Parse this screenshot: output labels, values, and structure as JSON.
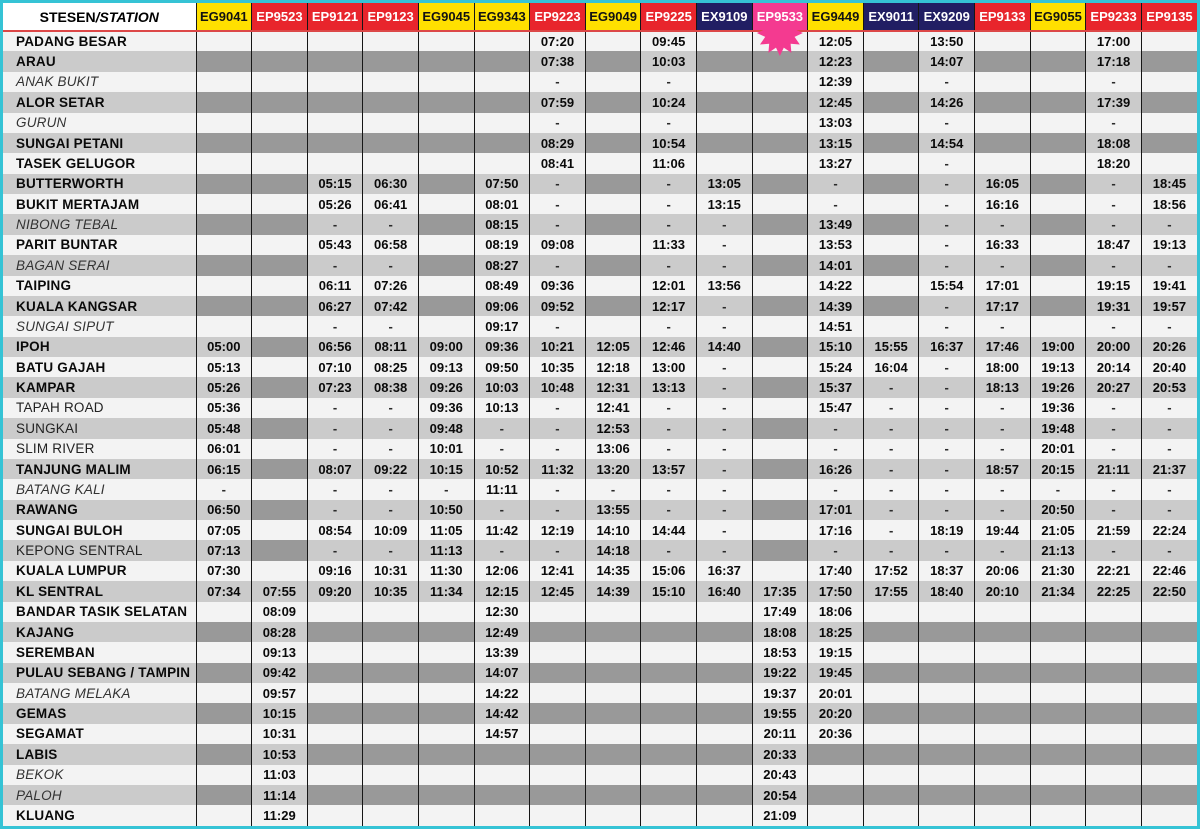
{
  "header": {
    "station_col_bold": "STESEN",
    "station_col_italic": "/STATION",
    "trains": [
      {
        "id": "EG9041",
        "color": "yellow"
      },
      {
        "id": "EP9523",
        "color": "red"
      },
      {
        "id": "EP9121",
        "color": "red"
      },
      {
        "id": "EP9123",
        "color": "red"
      },
      {
        "id": "EG9045",
        "color": "yellow"
      },
      {
        "id": "EG9343",
        "color": "yellow"
      },
      {
        "id": "EP9223",
        "color": "red"
      },
      {
        "id": "EG9049",
        "color": "yellow"
      },
      {
        "id": "EP9225",
        "color": "red"
      },
      {
        "id": "EX9109",
        "color": "navy"
      },
      {
        "id": "EP9533",
        "color": "pink",
        "marker": true,
        "marker_icon": "starburst"
      },
      {
        "id": "EG9449",
        "color": "yellow"
      },
      {
        "id": "EX9011",
        "color": "navy"
      },
      {
        "id": "EX9209",
        "color": "navy"
      },
      {
        "id": "EP9133",
        "color": "red"
      },
      {
        "id": "EG9055",
        "color": "yellow"
      },
      {
        "id": "EP9233",
        "color": "red"
      },
      {
        "id": "EP9135",
        "color": "red"
      }
    ]
  },
  "colors": {
    "frame_border_cyan": "#35c3d5",
    "header_rule_red": "#dc4747",
    "train_yellow": "#ffe000",
    "train_red": "#e8252c",
    "train_navy": "#211e63",
    "train_pink": "#f43a90",
    "origin_highlight_green": "#c3d830",
    "terminus_highlight_pink": "#f492b8",
    "no_service_gray": "#999999",
    "row_stripe_gray": "#cbcbcb",
    "row_stripe_light": "#f3f3f3"
  },
  "stations": [
    {
      "name": "PADANG BESAR",
      "style": "bold"
    },
    {
      "name": "ARAU",
      "style": "bold"
    },
    {
      "name": "ANAK BUKIT",
      "style": "italic"
    },
    {
      "name": "ALOR SETAR",
      "style": "bold"
    },
    {
      "name": "GURUN",
      "style": "italic"
    },
    {
      "name": "SUNGAI PETANI",
      "style": "bold"
    },
    {
      "name": "TASEK GELUGOR",
      "style": "bold"
    },
    {
      "name": "BUTTERWORTH",
      "style": "bold"
    },
    {
      "name": "BUKIT MERTAJAM",
      "style": "bold"
    },
    {
      "name": "NIBONG TEBAL",
      "style": "italic"
    },
    {
      "name": "PARIT BUNTAR",
      "style": "bold"
    },
    {
      "name": "BAGAN SERAI",
      "style": "italic"
    },
    {
      "name": "TAIPING",
      "style": "bold"
    },
    {
      "name": "KUALA KANGSAR",
      "style": "bold"
    },
    {
      "name": "SUNGAI SIPUT",
      "style": "italic"
    },
    {
      "name": "IPOH",
      "style": "bold"
    },
    {
      "name": "BATU GAJAH",
      "style": "bold"
    },
    {
      "name": "KAMPAR",
      "style": "bold"
    },
    {
      "name": "TAPAH ROAD",
      "style": "regular"
    },
    {
      "name": "SUNGKAI",
      "style": "regular"
    },
    {
      "name": "SLIM RIVER",
      "style": "regular"
    },
    {
      "name": "TANJUNG MALIM",
      "style": "bold"
    },
    {
      "name": "BATANG KALI",
      "style": "italic"
    },
    {
      "name": "RAWANG",
      "style": "bold"
    },
    {
      "name": "SUNGAI BULOH",
      "style": "bold"
    },
    {
      "name": "KEPONG SENTRAL",
      "style": "regular"
    },
    {
      "name": "KUALA LUMPUR",
      "style": "bold"
    },
    {
      "name": "KL SENTRAL",
      "style": "bold"
    },
    {
      "name": "BANDAR TASIK SELATAN",
      "style": "bold"
    },
    {
      "name": "KAJANG",
      "style": "bold"
    },
    {
      "name": "SEREMBAN",
      "style": "bold"
    },
    {
      "name": "PULAU SEBANG / TAMPIN",
      "style": "bold"
    },
    {
      "name": "BATANG MELAKA",
      "style": "italic"
    },
    {
      "name": "GEMAS",
      "style": "bold"
    },
    {
      "name": "SEGAMAT",
      "style": "bold"
    },
    {
      "name": "LABIS",
      "style": "bold"
    },
    {
      "name": "BEKOK",
      "style": "italic"
    },
    {
      "name": "PALOH",
      "style": "italic"
    },
    {
      "name": "KLUANG",
      "style": "bold"
    }
  ],
  "times": [
    [
      "",
      "",
      "",
      "",
      "",
      "",
      "07:20|g",
      "",
      "09:45|g",
      "",
      "",
      "12:05|g",
      "",
      "13:50|g",
      "",
      "",
      "17:00|g",
      ""
    ],
    [
      "",
      "",
      "",
      "",
      "",
      "",
      "07:38",
      "",
      "10:03",
      "",
      "",
      "12:23",
      "",
      "14:07",
      "",
      "",
      "17:18",
      ""
    ],
    [
      "",
      "",
      "",
      "",
      "",
      "",
      "-",
      "",
      "-",
      "",
      "",
      "12:39",
      "",
      "-",
      "",
      "",
      "-",
      ""
    ],
    [
      "",
      "",
      "",
      "",
      "",
      "",
      "07:59",
      "",
      "10:24",
      "",
      "",
      "12:45",
      "",
      "14:26",
      "",
      "",
      "17:39",
      ""
    ],
    [
      "",
      "",
      "",
      "",
      "",
      "",
      "-",
      "",
      "-",
      "",
      "",
      "13:03",
      "",
      "-",
      "",
      "",
      "-",
      ""
    ],
    [
      "",
      "",
      "",
      "",
      "",
      "",
      "08:29",
      "",
      "10:54",
      "",
      "",
      "13:15",
      "",
      "14:54",
      "",
      "",
      "18:08",
      ""
    ],
    [
      "",
      "",
      "",
      "",
      "",
      "",
      "08:41",
      "",
      "11:06",
      "",
      "",
      "13:27",
      "",
      "-",
      "",
      "",
      "18:20",
      ""
    ],
    [
      "",
      "",
      "05:15|g",
      "06:30|g",
      "",
      "07:50|g",
      "-",
      "",
      "-",
      "13:05|g",
      "",
      "-",
      "",
      "-",
      "16:05|g",
      "",
      "-",
      "18:45|g"
    ],
    [
      "",
      "",
      "05:26",
      "06:41",
      "",
      "08:01",
      "-",
      "",
      "-",
      "13:15",
      "",
      "-",
      "",
      "-",
      "16:16",
      "",
      "-",
      "18:56"
    ],
    [
      "",
      "",
      "-",
      "-",
      "",
      "08:15",
      "-",
      "",
      "-",
      "-",
      "",
      "13:49",
      "",
      "-",
      "-",
      "",
      "-",
      "-"
    ],
    [
      "",
      "",
      "05:43",
      "06:58",
      "",
      "08:19",
      "09:08",
      "",
      "11:33",
      "-",
      "",
      "13:53",
      "",
      "-",
      "16:33",
      "",
      "18:47",
      "19:13"
    ],
    [
      "",
      "",
      "-",
      "-",
      "",
      "08:27",
      "-",
      "",
      "-",
      "-",
      "",
      "14:01",
      "",
      "-",
      "-",
      "",
      "-",
      "-"
    ],
    [
      "",
      "",
      "06:11",
      "07:26",
      "",
      "08:49",
      "09:36",
      "",
      "12:01",
      "13:56",
      "",
      "14:22",
      "",
      "15:54",
      "17:01",
      "",
      "19:15",
      "19:41"
    ],
    [
      "",
      "",
      "06:27",
      "07:42",
      "",
      "09:06",
      "09:52",
      "",
      "12:17",
      "-",
      "",
      "14:39",
      "",
      "-",
      "17:17",
      "",
      "19:31",
      "19:57"
    ],
    [
      "",
      "",
      "-",
      "-",
      "",
      "09:17",
      "-",
      "",
      "-",
      "-",
      "",
      "14:51",
      "",
      "-",
      "-",
      "",
      "-",
      "-"
    ],
    [
      "05:00|g",
      "",
      "06:56",
      "08:11",
      "09:00|g",
      "09:36",
      "10:21",
      "12:05|g",
      "12:46",
      "14:40",
      "",
      "15:10",
      "15:55|g",
      "16:37",
      "17:46",
      "19:00|g",
      "20:00",
      "20:26"
    ],
    [
      "05:13",
      "",
      "07:10",
      "08:25",
      "09:13",
      "09:50",
      "10:35",
      "12:18",
      "13:00",
      "-",
      "",
      "15:24",
      "16:04",
      "-",
      "18:00",
      "19:13",
      "20:14",
      "20:40"
    ],
    [
      "05:26",
      "",
      "07:23",
      "08:38",
      "09:26",
      "10:03",
      "10:48",
      "12:31",
      "13:13",
      "-",
      "",
      "15:37",
      "-",
      "-",
      "18:13",
      "19:26",
      "20:27",
      "20:53"
    ],
    [
      "05:36",
      "",
      "-",
      "-",
      "09:36",
      "10:13",
      "-",
      "12:41",
      "-",
      "-",
      "",
      "15:47",
      "-",
      "-",
      "-",
      "19:36",
      "-",
      "-"
    ],
    [
      "05:48",
      "",
      "-",
      "-",
      "09:48",
      "-",
      "-",
      "12:53",
      "-",
      "-",
      "",
      "-",
      "-",
      "-",
      "-",
      "19:48",
      "-",
      "-"
    ],
    [
      "06:01",
      "",
      "-",
      "-",
      "10:01",
      "-",
      "-",
      "13:06",
      "-",
      "-",
      "",
      "-",
      "-",
      "-",
      "-",
      "20:01",
      "-",
      "-"
    ],
    [
      "06:15",
      "",
      "08:07",
      "09:22",
      "10:15",
      "10:52",
      "11:32",
      "13:20",
      "13:57",
      "-",
      "",
      "16:26",
      "-",
      "-",
      "18:57",
      "20:15",
      "21:11",
      "21:37"
    ],
    [
      "-",
      "",
      "-",
      "-",
      "-",
      "11:11",
      "-",
      "-",
      "-",
      "-",
      "",
      "-",
      "-",
      "-",
      "-",
      "-",
      "-",
      "-"
    ],
    [
      "06:50",
      "",
      "-",
      "-",
      "10:50",
      "-",
      "-",
      "13:55",
      "-",
      "-",
      "",
      "17:01",
      "-",
      "-",
      "-",
      "20:50",
      "-",
      "-"
    ],
    [
      "07:05",
      "",
      "08:54",
      "10:09",
      "11:05",
      "11:42",
      "12:19",
      "14:10",
      "14:44",
      "-",
      "",
      "17:16",
      "-",
      "18:19",
      "19:44",
      "21:05",
      "21:59",
      "22:24"
    ],
    [
      "07:13",
      "",
      "-",
      "-",
      "11:13",
      "-",
      "-",
      "14:18",
      "-",
      "-",
      "",
      "-",
      "-",
      "-",
      "-",
      "21:13",
      "-",
      "-"
    ],
    [
      "07:30",
      "",
      "09:16",
      "10:31",
      "11:30",
      "12:06",
      "12:41",
      "14:35",
      "15:06",
      "16:37",
      "",
      "17:40",
      "17:52",
      "18:37",
      "20:06",
      "21:30",
      "22:21",
      "22:46"
    ],
    [
      "07:34|p",
      "07:55|g",
      "09:20|p",
      "10:35|p",
      "11:34|p",
      "12:15",
      "12:45|p",
      "14:39|p",
      "15:10|p",
      "16:40|p",
      "17:35|g",
      "17:50",
      "17:55|p",
      "18:40|p",
      "20:10|p",
      "21:34|p",
      "22:25|p",
      "22:50|p"
    ],
    [
      "",
      "08:09",
      "",
      "",
      "",
      "12:30",
      "",
      "",
      "",
      "",
      "17:49",
      "18:06",
      "",
      "",
      "",
      "",
      "",
      ""
    ],
    [
      "",
      "08:28",
      "",
      "",
      "",
      "12:49",
      "",
      "",
      "",
      "",
      "18:08",
      "18:25",
      "",
      "",
      "",
      "",
      "",
      ""
    ],
    [
      "",
      "09:13",
      "",
      "",
      "",
      "13:39",
      "",
      "",
      "",
      "",
      "18:53",
      "19:15",
      "",
      "",
      "",
      "",
      "",
      ""
    ],
    [
      "",
      "09:42",
      "",
      "",
      "",
      "14:07",
      "",
      "",
      "",
      "",
      "19:22",
      "19:45",
      "",
      "",
      "",
      "",
      "",
      ""
    ],
    [
      "",
      "09:57",
      "",
      "",
      "",
      "14:22",
      "",
      "",
      "",
      "",
      "19:37",
      "20:01",
      "",
      "",
      "",
      "",
      "",
      ""
    ],
    [
      "",
      "10:15",
      "",
      "",
      "",
      "14:42",
      "",
      "",
      "",
      "",
      "19:55",
      "20:20",
      "",
      "",
      "",
      "",
      "",
      ""
    ],
    [
      "",
      "10:31",
      "",
      "",
      "",
      "14:57|p",
      "",
      "",
      "",
      "",
      "20:11",
      "20:36|p",
      "",
      "",
      "",
      "",
      "",
      ""
    ],
    [
      "",
      "10:53",
      "",
      "",
      "",
      "",
      "",
      "",
      "",
      "",
      "20:33",
      "",
      "",
      "",
      "",
      "",
      "",
      ""
    ],
    [
      "",
      "11:03",
      "",
      "",
      "",
      "",
      "",
      "",
      "",
      "",
      "20:43",
      "",
      "",
      "",
      "",
      "",
      "",
      ""
    ],
    [
      "",
      "11:14",
      "",
      "",
      "",
      "",
      "",
      "",
      "",
      "",
      "20:54",
      "",
      "",
      "",
      "",
      "",
      "",
      ""
    ],
    [
      "",
      "11:29|p",
      "",
      "",
      "",
      "",
      "",
      "",
      "",
      "",
      "21:09|p",
      "",
      "",
      "",
      "",
      "",
      "",
      ""
    ]
  ]
}
